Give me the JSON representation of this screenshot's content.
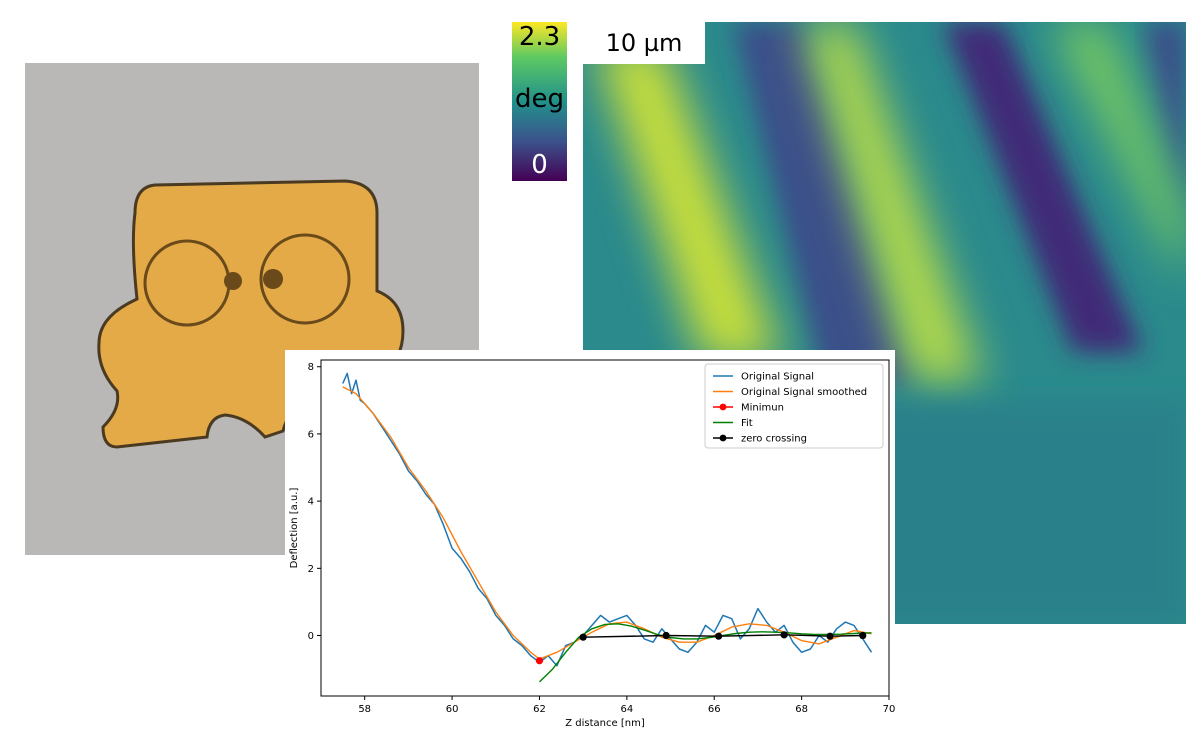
{
  "colorbar": {
    "max_label": "2.3",
    "unit_label": "deg",
    "min_label": "0"
  },
  "afm_image": {
    "scalebar_label": "10 µm",
    "colormap": [
      "#440154",
      "#3b528b",
      "#21918c",
      "#5ec962",
      "#fde725"
    ]
  },
  "photo": {
    "cantilever_color": "#e3aa47",
    "outline_color": "#4a3a22",
    "background_color": "#b9b8b6"
  },
  "chart_data": {
    "type": "line",
    "title": "",
    "xlabel": "Z distance [nm]",
    "ylabel": "Deflection [a.u.]",
    "xlim": [
      57.0,
      70.0
    ],
    "ylim": [
      -1.8,
      8.2
    ],
    "xticks": [
      58,
      60,
      62,
      64,
      66,
      68,
      70
    ],
    "yticks": [
      0,
      2,
      4,
      6,
      8
    ],
    "legend_position": "top-right",
    "series": [
      {
        "name": "Original Signal",
        "kind": "line",
        "color": "#1f77b4",
        "x": [
          57.5,
          57.6,
          57.7,
          57.8,
          57.9,
          58.0,
          58.2,
          58.4,
          58.6,
          58.8,
          59.0,
          59.2,
          59.4,
          59.6,
          59.8,
          60.0,
          60.2,
          60.4,
          60.6,
          60.8,
          61.0,
          61.2,
          61.4,
          61.6,
          61.8,
          62.0,
          62.2,
          62.4,
          62.6,
          62.8,
          63.0,
          63.2,
          63.4,
          63.6,
          63.8,
          64.0,
          64.2,
          64.4,
          64.6,
          64.8,
          65.0,
          65.2,
          65.4,
          65.6,
          65.8,
          66.0,
          66.2,
          66.4,
          66.6,
          66.8,
          67.0,
          67.2,
          67.4,
          67.6,
          67.8,
          68.0,
          68.2,
          68.4,
          68.6,
          68.8,
          69.0,
          69.2,
          69.4,
          69.6
        ],
        "y": [
          7.5,
          7.8,
          7.2,
          7.6,
          7.0,
          6.9,
          6.6,
          6.2,
          5.8,
          5.4,
          4.9,
          4.6,
          4.2,
          3.9,
          3.3,
          2.6,
          2.3,
          1.9,
          1.4,
          1.1,
          0.6,
          0.3,
          -0.1,
          -0.3,
          -0.6,
          -0.8,
          -0.6,
          -0.9,
          -0.3,
          -0.2,
          0.0,
          0.3,
          0.6,
          0.4,
          0.5,
          0.6,
          0.3,
          -0.1,
          -0.2,
          0.2,
          -0.1,
          -0.4,
          -0.5,
          -0.2,
          0.3,
          0.1,
          0.6,
          0.5,
          -0.1,
          0.2,
          0.8,
          0.4,
          0.1,
          0.3,
          -0.2,
          -0.5,
          -0.4,
          0.0,
          -0.2,
          0.2,
          0.4,
          0.3,
          -0.1,
          -0.5
        ]
      },
      {
        "name": "Original Signal smoothed",
        "kind": "line",
        "color": "#ff7f0e",
        "x": [
          57.5,
          57.8,
          58.2,
          58.6,
          59.0,
          59.4,
          59.8,
          60.2,
          60.6,
          61.0,
          61.4,
          61.8,
          62.0,
          62.4,
          62.8,
          63.2,
          63.6,
          64.0,
          64.4,
          64.8,
          65.2,
          65.6,
          66.0,
          66.4,
          66.8,
          67.2,
          67.6,
          68.0,
          68.4,
          68.8,
          69.2,
          69.6
        ],
        "y": [
          7.4,
          7.2,
          6.6,
          5.9,
          5.0,
          4.3,
          3.5,
          2.5,
          1.6,
          0.7,
          0.0,
          -0.5,
          -0.7,
          -0.5,
          -0.2,
          0.1,
          0.35,
          0.4,
          0.2,
          -0.05,
          -0.2,
          -0.2,
          0.0,
          0.25,
          0.35,
          0.3,
          0.1,
          -0.15,
          -0.25,
          -0.05,
          0.15,
          0.05
        ]
      },
      {
        "name": "Minimun",
        "kind": "point",
        "color": "#ff0000",
        "x": [
          62.0
        ],
        "y": [
          -0.75
        ]
      },
      {
        "name": "Fit",
        "kind": "line",
        "color": "#008000",
        "x": [
          62.0,
          62.3,
          62.6,
          62.9,
          63.2,
          63.5,
          63.8,
          64.1,
          64.4,
          64.7,
          65.0,
          65.3,
          65.6,
          65.9,
          66.2,
          66.5,
          66.8,
          67.1,
          67.4,
          67.7,
          68.0,
          68.3,
          68.6,
          68.9,
          69.2,
          69.6
        ],
        "y": [
          -1.38,
          -1.0,
          -0.5,
          -0.05,
          0.2,
          0.33,
          0.35,
          0.28,
          0.16,
          0.03,
          -0.06,
          -0.1,
          -0.1,
          -0.06,
          0.0,
          0.06,
          0.1,
          0.11,
          0.1,
          0.08,
          0.05,
          0.03,
          0.03,
          0.04,
          0.06,
          0.08
        ]
      },
      {
        "name": "zero crossing",
        "kind": "line-markers",
        "color": "#000000",
        "x": [
          63.0,
          64.9,
          66.1,
          67.6,
          68.65,
          69.4
        ],
        "y": [
          -0.05,
          0.0,
          -0.02,
          0.02,
          -0.02,
          0.0
        ]
      }
    ]
  }
}
